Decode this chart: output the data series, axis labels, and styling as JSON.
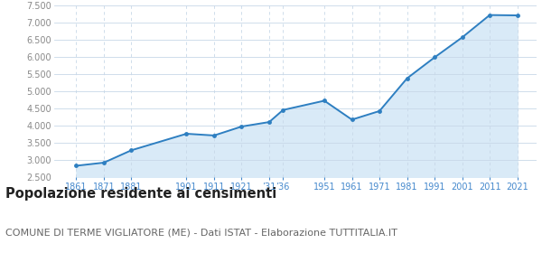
{
  "years": [
    1861,
    1871,
    1881,
    1901,
    1911,
    1921,
    1931,
    1936,
    1951,
    1961,
    1971,
    1981,
    1991,
    2001,
    2011,
    2021
  ],
  "population": [
    2830,
    2920,
    3280,
    3760,
    3710,
    3970,
    4100,
    4450,
    4720,
    4170,
    4420,
    5370,
    5980,
    6560,
    7210,
    7200
  ],
  "line_color": "#2e7fc1",
  "fill_color": "#d9eaf7",
  "marker_color": "#2e7fc1",
  "background_color": "#ffffff",
  "grid_color_h": "#c8d8e8",
  "grid_color_v": "#c8d8e8",
  "title": "Popolazione residente ai censimenti",
  "subtitle": "COMUNE DI TERME VIGLIATORE (ME) - Dati ISTAT - Elaborazione TUTTITALIA.IT",
  "ylim": [
    2500,
    7500
  ],
  "yticks": [
    2500,
    3000,
    3500,
    4000,
    4500,
    5000,
    5500,
    6000,
    6500,
    7000,
    7500
  ],
  "title_fontsize": 10.5,
  "subtitle_fontsize": 8.0,
  "tick_label_color": "#888888",
  "x_tick_color": "#4488cc"
}
